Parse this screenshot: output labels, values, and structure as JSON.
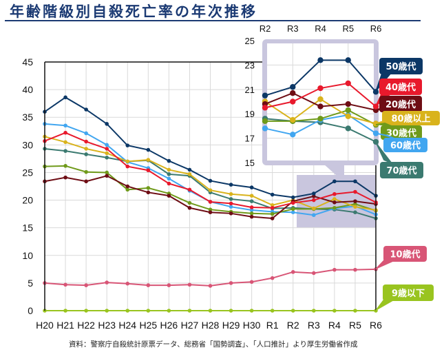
{
  "title": "年齢階級別自殺死亡率の年次推移",
  "source_note": "資料：警察庁自殺統計原票データ、総務省「国勢調査」、「人口推計」より厚生労働省作成",
  "chart_data": {
    "type": "line",
    "title": "年齢階級別自殺死亡率の年次推移",
    "xlabel": "",
    "ylabel": "",
    "ylim": [
      0,
      45
    ],
    "yticks": [
      0,
      5,
      10,
      15,
      20,
      25,
      30,
      35,
      40,
      45
    ],
    "grid": true,
    "categories": [
      "H20",
      "H21",
      "H22",
      "H23",
      "H24",
      "H25",
      "H26",
      "H27",
      "H28",
      "H29",
      "H30",
      "R1",
      "R2",
      "R3",
      "R4",
      "R5",
      "R6"
    ],
    "series": [
      {
        "name": "50歳代",
        "color": "#0b3766",
        "values": [
          36.0,
          38.6,
          36.4,
          33.8,
          29.9,
          29.1,
          27.1,
          25.5,
          23.5,
          22.8,
          22.3,
          21.0,
          20.5,
          21.2,
          23.4,
          23.4,
          20.8
        ]
      },
      {
        "name": "40歳代",
        "color": "#e8192c",
        "values": [
          30.7,
          32.2,
          30.6,
          29.3,
          26.1,
          25.4,
          23.0,
          21.9,
          19.7,
          19.4,
          18.7,
          18.6,
          19.5,
          20.0,
          21.1,
          21.5,
          19.6
        ]
      },
      {
        "name": "20歳代",
        "color": "#6e0d14",
        "values": [
          23.4,
          24.1,
          23.4,
          24.4,
          22.5,
          21.4,
          20.8,
          18.6,
          17.8,
          17.6,
          17.0,
          16.7,
          19.8,
          20.7,
          19.6,
          19.8,
          19.3
        ]
      },
      {
        "name": "80歳以上",
        "color": "#d9b31c",
        "values": [
          31.5,
          30.5,
          29.3,
          28.5,
          27.0,
          27.3,
          25.5,
          24.7,
          21.8,
          21.1,
          20.8,
          19.1,
          20.0,
          18.5,
          20.2,
          18.8,
          18.2
        ]
      },
      {
        "name": "30歳代",
        "color": "#6f9a1a",
        "values": [
          26.1,
          26.2,
          25.1,
          25.0,
          21.9,
          22.2,
          21.2,
          19.5,
          18.3,
          17.9,
          17.6,
          17.5,
          18.4,
          18.4,
          18.6,
          19.3,
          18.1
        ]
      },
      {
        "name": "60歳代",
        "color": "#41a6f0",
        "values": [
          33.8,
          33.5,
          32.1,
          30.0,
          26.9,
          25.8,
          23.9,
          21.7,
          19.7,
          18.8,
          18.2,
          17.9,
          17.8,
          17.3,
          18.5,
          18.9,
          17.4
        ]
      },
      {
        "name": "70歳代",
        "color": "#3b7a70",
        "values": [
          29.3,
          28.9,
          28.3,
          27.7,
          27.0,
          27.2,
          24.7,
          24.4,
          21.4,
          20.2,
          19.8,
          18.5,
          18.6,
          18.4,
          18.3,
          17.8,
          16.7
        ]
      },
      {
        "name": "10歳代",
        "color": "#d85576",
        "values": [
          5.0,
          4.7,
          4.6,
          5.1,
          4.9,
          4.6,
          4.6,
          4.7,
          4.5,
          5.0,
          5.2,
          5.9,
          7.0,
          6.8,
          7.4,
          7.4,
          7.5
        ]
      },
      {
        "name": "9歳以下",
        "color": "#99c41f",
        "values": [
          0,
          0,
          0,
          0,
          0,
          0,
          0,
          0,
          0,
          0,
          0,
          0,
          0,
          0,
          0,
          0,
          0
        ]
      }
    ],
    "inset": {
      "categories": [
        "R2",
        "R3",
        "R4",
        "R5",
        "R6"
      ],
      "ylim": [
        15,
        25
      ],
      "yticks": [
        15,
        17,
        19,
        21,
        23,
        25
      ]
    },
    "legend_placement": "right"
  }
}
